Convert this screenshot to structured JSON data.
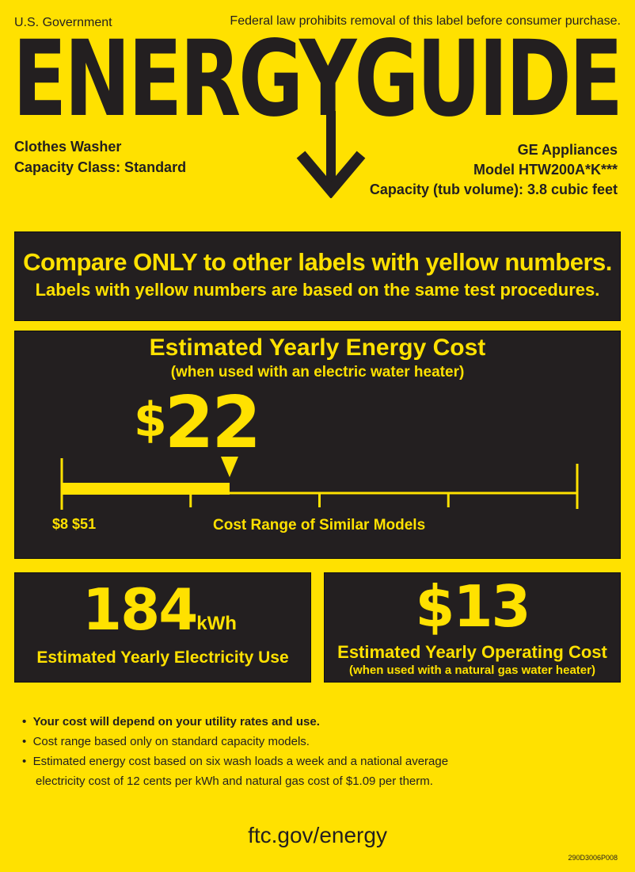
{
  "header": {
    "issuer": "U.S. Government",
    "notice": "Federal law prohibits removal of this label before consumer purchase.",
    "logo": "ENERGYGUIDE"
  },
  "product": {
    "type": "Clothes Washer",
    "capacity_class": "Capacity Class: Standard",
    "brand": "GE Appliances",
    "model": "Model HTW200A*K***",
    "capacity": "Capacity (tub volume): 3.8 cubic feet"
  },
  "compare": {
    "headline": "Compare ONLY to other labels with yellow numbers.",
    "subline": "Labels with yellow numbers are based on the same test procedures."
  },
  "yearly_cost": {
    "title": "Estimated Yearly Energy Cost",
    "subtitle": "(when used with an electric water heater)",
    "currency": "$",
    "value": "22",
    "range_low": "$8",
    "range_high": "$51",
    "range_label": "Cost Range of Similar Models",
    "scale_min": 8,
    "scale_max": 51,
    "marker_value": 22
  },
  "electricity": {
    "value": "184",
    "unit": "kWh",
    "label": "Estimated Yearly Electricity Use"
  },
  "operating": {
    "value": "$13",
    "label": "Estimated Yearly Operating Cost",
    "sublabel": "(when used with a natural gas water heater)"
  },
  "notes": [
    "Your cost will depend on your utility rates and use.",
    "Cost range based only on standard capacity models.",
    "Estimated energy cost based on six wash loads a week and a national average",
    "electricity cost of 12 cents per kWh and natural gas cost of $1.09 per therm."
  ],
  "footer": {
    "url": "ftc.gov/energy",
    "code": "290D3006P008"
  },
  "colors": {
    "label_yellow": "#FFE100",
    "panel_dark": "#231f20"
  }
}
